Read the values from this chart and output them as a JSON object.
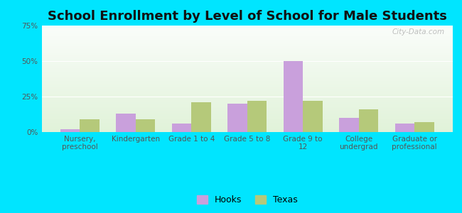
{
  "title": "School Enrollment by Level of School for Male Students",
  "categories": [
    "Nursery,\npreschool",
    "Kindergarten",
    "Grade 1 to 4",
    "Grade 5 to 8",
    "Grade 9 to\n12",
    "College\nundergrad",
    "Graduate or\nprofessional"
  ],
  "hooks_values": [
    2,
    13,
    6,
    20,
    50,
    10,
    6
  ],
  "texas_values": [
    9,
    9,
    21,
    22,
    22,
    16,
    7
  ],
  "hooks_color": "#c9a0dc",
  "texas_color": "#b5c97a",
  "background_color": "#00e5ff",
  "title_fontsize": 13,
  "tick_label_fontsize": 7.5,
  "ylim": [
    0,
    75
  ],
  "yticks": [
    0,
    25,
    50,
    75
  ],
  "ytick_labels": [
    "0%",
    "25%",
    "50%",
    "75%"
  ],
  "legend_labels": [
    "Hooks",
    "Texas"
  ],
  "bar_width": 0.35,
  "watermark": "City-Data.com"
}
